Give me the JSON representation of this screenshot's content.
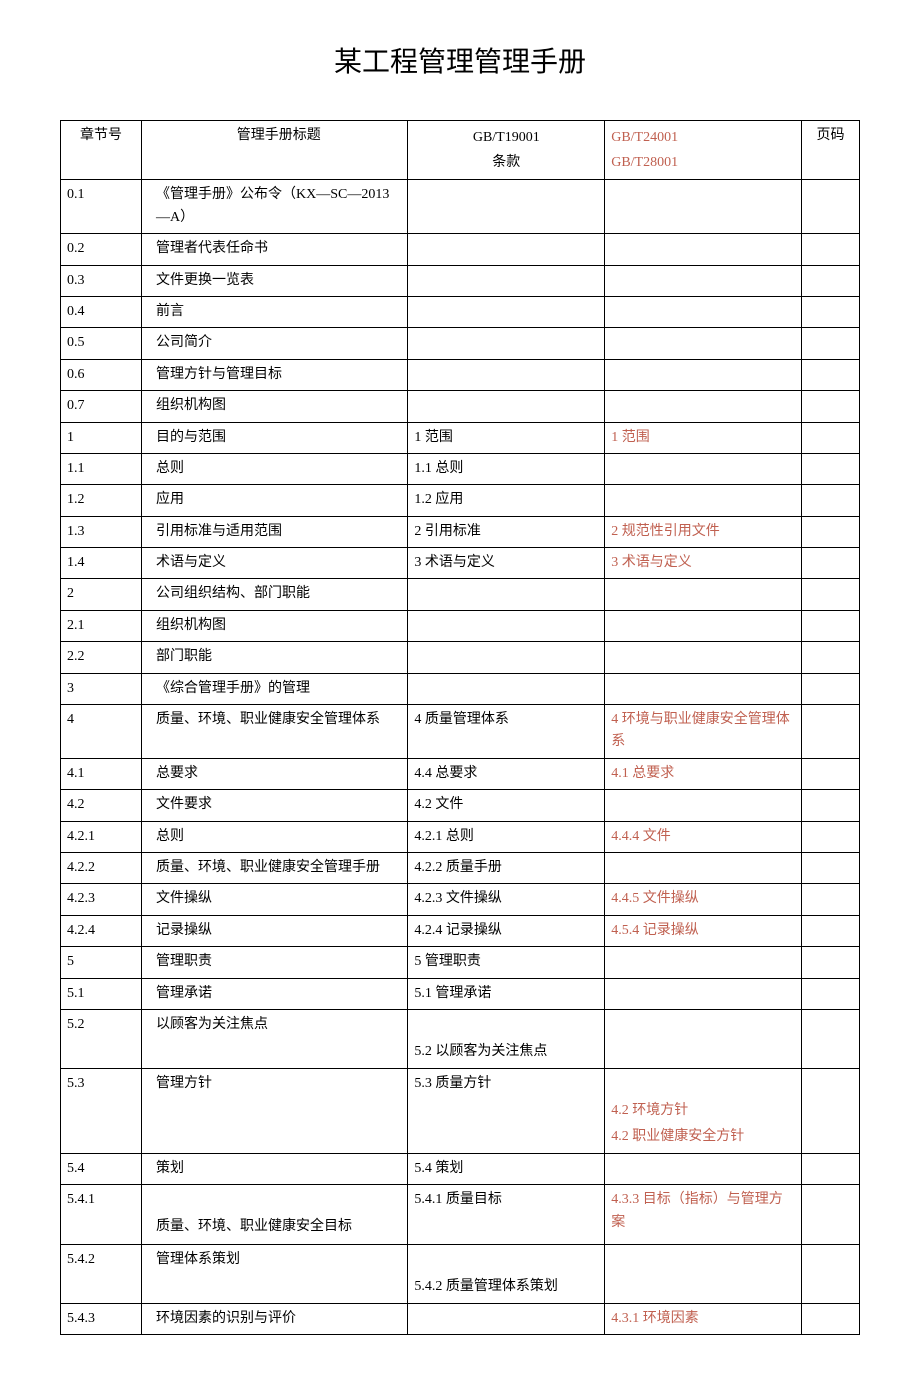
{
  "document": {
    "title": "某工程管理管理手册",
    "title_fontsize": 28,
    "body_fontsize": 14,
    "text_color": "#000000",
    "red_text_color": "#c06050",
    "border_color": "#000000",
    "background_color": "#ffffff",
    "columns": {
      "col1_width": 70,
      "col2_width": 230,
      "col3_width": 170,
      "col4_width": 170,
      "col5_width": 50
    },
    "header": {
      "col1": "章节号",
      "col2": "管理手册标题",
      "col3_line1": "GB/T19001",
      "col3_line2": "条款",
      "col4_line1": "GB/T24001",
      "col4_line2": "GB/T28001",
      "col5": "页码"
    },
    "rows": [
      {
        "c1": "0.1",
        "c2": "《管理手册》公布令（KX—SC—2013—A）",
        "c3": "",
        "c4": "",
        "c5": ""
      },
      {
        "c1": "0.2",
        "c2": "管理者代表任命书",
        "c3": "",
        "c4": "",
        "c5": ""
      },
      {
        "c1": "0.3",
        "c2": "文件更换一览表",
        "c3": "",
        "c4": "",
        "c5": ""
      },
      {
        "c1": "0.4",
        "c2": "前言",
        "c3": "",
        "c4": "",
        "c5": ""
      },
      {
        "c1": "0.5",
        "c2": "公司简介",
        "c3": "",
        "c4": "",
        "c5": ""
      },
      {
        "c1": "0.6",
        "c2": "管理方针与管理目标",
        "c3": "",
        "c4": "",
        "c5": ""
      },
      {
        "c1": "0.7",
        "c2": "组织机构图",
        "c3": "",
        "c4": "",
        "c5": ""
      },
      {
        "c1": "1",
        "c2": "目的与范围",
        "c3": "1 范围",
        "c4": "1 范围",
        "c5": ""
      },
      {
        "c1": "1.1",
        "c2": "总则",
        "c3": "1.1 总则",
        "c4": "",
        "c5": ""
      },
      {
        "c1": "1.2",
        "c2": "应用",
        "c3": "1.2 应用",
        "c4": "",
        "c5": ""
      },
      {
        "c1": "1.3",
        "c2": "引用标准与适用范围",
        "c3": "2 引用标准",
        "c4": "2 规范性引用文件",
        "c5": ""
      },
      {
        "c1": "1.4",
        "c2": "术语与定义",
        "c3": "3 术语与定义",
        "c4": "3 术语与定义",
        "c5": ""
      },
      {
        "c1": "2",
        "c2": "公司组织结构、部门职能",
        "c3": "",
        "c4": "",
        "c5": ""
      },
      {
        "c1": "2.1",
        "c2": "组织机构图",
        "c3": "",
        "c4": "",
        "c5": ""
      },
      {
        "c1": "2.2",
        "c2": "部门职能",
        "c3": "",
        "c4": "",
        "c5": ""
      },
      {
        "c1": "3",
        "c2": "《综合管理手册》的管理",
        "c3": "",
        "c4": "",
        "c5": ""
      },
      {
        "c1": "4",
        "c2": "质量、环境、职业健康安全管理体系",
        "c3": "4 质量管理体系",
        "c4": "4 环境与职业健康安全管理体系",
        "c5": ""
      },
      {
        "c1": "4.1",
        "c2": "总要求",
        "c3": "4.4 总要求",
        "c4": "4.1 总要求",
        "c5": ""
      },
      {
        "c1": "4.2",
        "c2": "文件要求",
        "c3": "4.2 文件",
        "c4": "",
        "c5": ""
      },
      {
        "c1": "4.2.1",
        "c2": "总则",
        "c3": "4.2.1 总则",
        "c4": "4.4.4 文件",
        "c5": ""
      },
      {
        "c1": "4.2.2",
        "c2": "质量、环境、职业健康安全管理手册",
        "c3": "4.2.2 质量手册",
        "c4": "",
        "c5": ""
      },
      {
        "c1": "4.2.3",
        "c2": "文件操纵",
        "c3": "4.2.3 文件操纵",
        "c4": "4.4.5 文件操纵",
        "c5": ""
      },
      {
        "c1": "4.2.4",
        "c2": "记录操纵",
        "c3": "4.2.4 记录操纵",
        "c4": "4.5.4 记录操纵",
        "c5": ""
      },
      {
        "c1": "5",
        "c2": "管理职责",
        "c3": "5 管理职责",
        "c4": "",
        "c5": ""
      },
      {
        "c1": "5.1",
        "c2": "管理承诺",
        "c3": "5.1 管理承诺",
        "c4": "",
        "c5": ""
      },
      {
        "c1": "5.4",
        "c2": "策划",
        "c3": "5.4 策划",
        "c4": "",
        "c5": ""
      },
      {
        "c1": "5.4.3",
        "c2": "环境因素的识别与评价",
        "c3": "",
        "c4": "4.3.1 环境因素",
        "c5": ""
      }
    ],
    "row_5_2": {
      "c1": "5.2",
      "c2": "以顾客为关注焦点",
      "c3_line2": "5.2 以顾客为关注焦点",
      "c4": "",
      "c5": ""
    },
    "row_5_3": {
      "c1": "5.3",
      "c2": "管理方针",
      "c3": "5.3 质量方针",
      "c4_line2": "4.2 环境方针",
      "c4_line3": "4.2 职业健康安全方针",
      "c5": ""
    },
    "row_5_4_1": {
      "c1": "5.4.1",
      "c2_line2": "质量、环境、职业健康安全目标",
      "c3": "5.4.1 质量目标",
      "c4": "4.3.3 目标（指标）与管理方案",
      "c5": ""
    },
    "row_5_4_2": {
      "c1": "5.4.2",
      "c2": "管理体系策划",
      "c3_line2": "5.4.2 质量管理体系策划",
      "c4": "",
      "c5": ""
    }
  }
}
